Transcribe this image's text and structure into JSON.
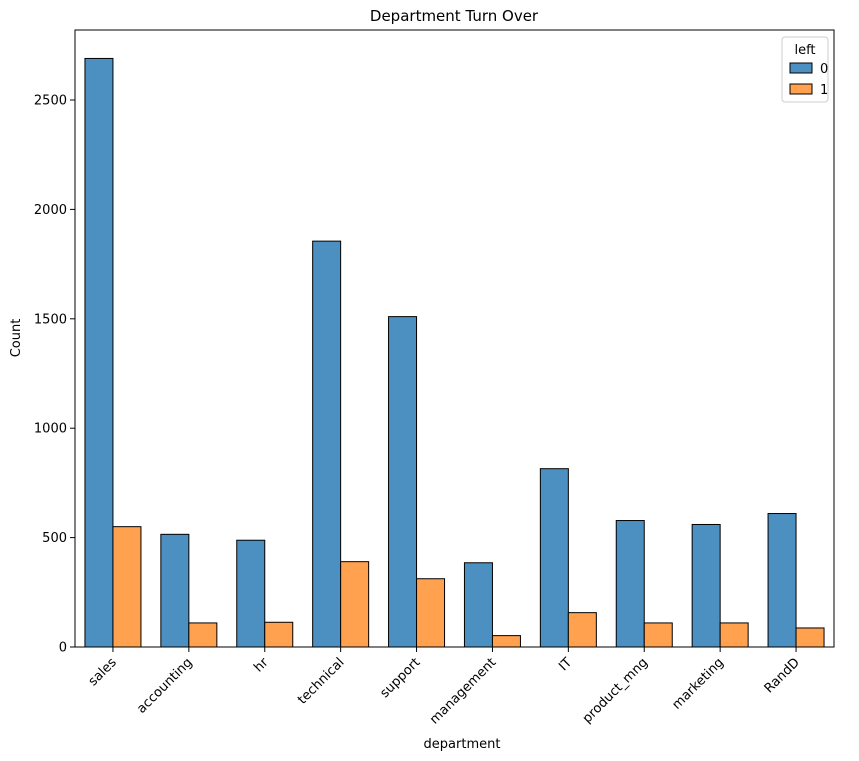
{
  "chart_data": {
    "type": "bar",
    "title": "Department Turn Over",
    "xlabel": "department",
    "ylabel": "Count",
    "categories": [
      "sales",
      "accounting",
      "hr",
      "technical",
      "support",
      "management",
      "IT",
      "product_mng",
      "marketing",
      "RandD"
    ],
    "series": [
      {
        "name": "0",
        "color": "#4c8fc1",
        "values": [
          2690,
          515,
          488,
          1855,
          1510,
          385,
          815,
          578,
          560,
          610
        ]
      },
      {
        "name": "1",
        "color": "#ffa14f",
        "values": [
          550,
          110,
          113,
          390,
          312,
          52,
          157,
          110,
          110,
          87
        ]
      }
    ],
    "ylim": [
      0,
      2820
    ],
    "yticks": [
      0,
      500,
      1000,
      1500,
      2000,
      2500
    ],
    "grid": false,
    "legend": {
      "title": "left",
      "position": "top-right"
    }
  }
}
